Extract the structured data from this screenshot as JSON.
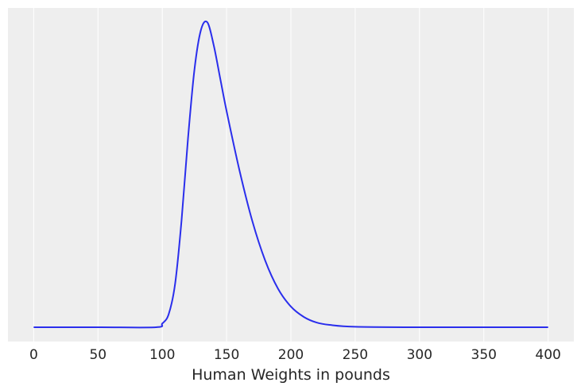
{
  "chart_data": {
    "type": "line",
    "title": "",
    "xlabel": "Human Weights in pounds",
    "ylabel": "",
    "xlim": [
      -20,
      420
    ],
    "xticks": [
      0,
      50,
      100,
      150,
      200,
      250,
      300,
      350,
      400
    ],
    "y_axis_visible": false,
    "grid": "vertical",
    "series": [
      {
        "color": "#2a2eec",
        "x": [
          0,
          50,
          95,
          100,
          105,
          110,
          115,
          120,
          125,
          130,
          135,
          140,
          145,
          150,
          160,
          170,
          180,
          190,
          200,
          210,
          220,
          230,
          250,
          300,
          350,
          400
        ],
        "y": [
          0.0,
          0.0,
          0.0,
          0.0008,
          0.0028,
          0.0093,
          0.0228,
          0.0402,
          0.0548,
          0.0632,
          0.0649,
          0.06,
          0.053,
          0.046,
          0.0334,
          0.0226,
          0.0142,
          0.0082,
          0.0044,
          0.0022,
          0.001,
          0.0005,
          0.0001,
          0.0,
          0.0,
          0.0
        ]
      }
    ],
    "colors": {
      "background": "#eeeeee",
      "grid": "#ffffff",
      "line": "#2a2eec"
    }
  }
}
